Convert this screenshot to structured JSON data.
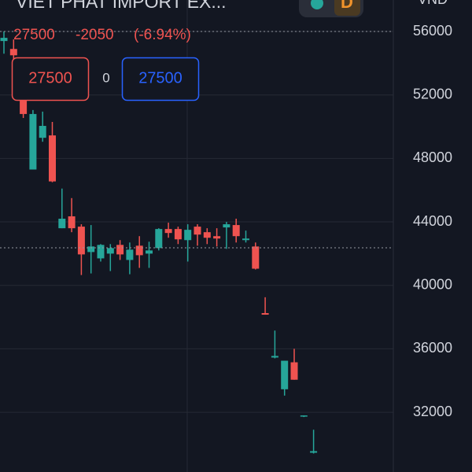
{
  "chart_data": {
    "type": "candlestick",
    "title": "VIET PHAT IMPORT EX...",
    "badge": "D",
    "y_unit": "VND",
    "last_price": 27500,
    "change": -2050,
    "change_percent_label": "(-6.94%)",
    "bid": 27500,
    "spread": 0,
    "ask": 27500,
    "up_color": "#26a69a",
    "down_color": "#ef5350",
    "open": [
      55400,
      54900,
      51800,
      47300,
      49300,
      49450,
      43600,
      44350,
      43700,
      42100,
      41700,
      42000,
      42550,
      41600,
      42500,
      42000,
      42350,
      43550,
      43550,
      42850,
      43700,
      43350,
      43100,
      43650,
      43800,
      42850,
      42450,
      38250,
      35450,
      33450,
      35150,
      31750,
      29450
    ],
    "high": [
      56000,
      55500,
      52300,
      51050,
      50950,
      50300,
      46100,
      45500,
      43850,
      43800,
      42600,
      42600,
      42850,
      42700,
      43100,
      42750,
      43600,
      43950,
      43700,
      43850,
      43850,
      43600,
      43600,
      44000,
      44200,
      43450,
      42700,
      39250,
      37150,
      35250,
      36000,
      31800,
      30900
    ],
    "low": [
      54600,
      54000,
      50550,
      47300,
      49050,
      46500,
      43600,
      43350,
      40650,
      40750,
      41500,
      40900,
      41600,
      40700,
      41100,
      41100,
      42200,
      43000,
      42600,
      41500,
      42500,
      42600,
      42450,
      42300,
      42700,
      42700,
      41000,
      38150,
      35400,
      33050,
      34050,
      31700,
      29400
    ],
    "close": [
      55600,
      54500,
      50800,
      50800,
      50050,
      46550,
      44200,
      43600,
      41950,
      42450,
      42550,
      42350,
      41950,
      42250,
      41900,
      42200,
      43550,
      43300,
      42900,
      43500,
      43200,
      43000,
      42950,
      43850,
      43100,
      42950,
      41050,
      38150,
      35550,
      35250,
      34050,
      31800,
      29550
    ],
    "ylim": [
      28235,
      57985
    ],
    "yticks": [
      32000,
      36000,
      40000,
      44000,
      48000,
      52000,
      56000
    ],
    "grid": true
  }
}
